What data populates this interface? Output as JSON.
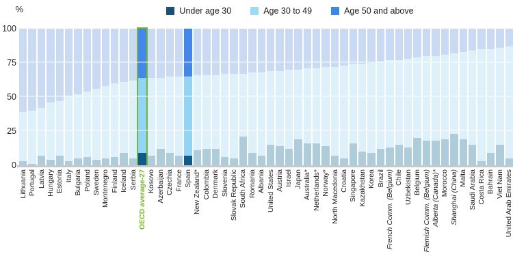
{
  "chart_data": {
    "type": "bar",
    "stacked_percent": true,
    "ylabel": "%",
    "ylim": [
      0,
      100
    ],
    "ytick_labels": [
      "100",
      "75",
      "50",
      "25",
      "0"
    ],
    "grid": "horizontal",
    "legend_position": "top-center",
    "legend": [
      {
        "label": "Under age 30",
        "color": "#1b4f74"
      },
      {
        "label": "Age 30 to 49",
        "color": "#9fd9f7"
      },
      {
        "label": "Age 50 and above",
        "color": "#3f87e5"
      }
    ],
    "colors": {
      "normal": {
        "under30": "#afccdb",
        "age30to49": "#def0f9",
        "age50plus": "#cbdaf3"
      },
      "highlight": {
        "under30": "#0e5a8a",
        "age30to49": "#92d4f6",
        "age50plus": "#4288ec"
      },
      "oecd_outline": "#76b82a",
      "oecd_label_color": "#76b82a"
    },
    "categories": [
      "Lithuania",
      "Portugal",
      "Latvia",
      "Hungary",
      "Estonia",
      "Italy",
      "Bulgaria",
      "Poland",
      "Sweden",
      "Montenegro",
      "Finland",
      "Iceland",
      "Serbia",
      "OECD average-27",
      "Kosovo",
      "Azerbaijan",
      "Czechia",
      "France",
      "Spain",
      "New Zealand*",
      "Colombia",
      "Denmark",
      "Slovenia",
      "Slovak Republic",
      "South Africa",
      "Romania",
      "Albania",
      "United States",
      "Austria",
      "Israel",
      "Japan",
      "Australia*",
      "Netherlands*",
      "Norway*",
      "North Macedonia",
      "Croatia",
      "Singapore",
      "Kazakhstan",
      "Korea",
      "Brazil",
      "French Comm. (Belgium)",
      "Chile",
      "Uzbekistan",
      "Belgium",
      "Flemish Comm. (Belgium)",
      "Alberta (Canada)*",
      "Morocco",
      "Shanghai (China)",
      "Malta",
      "Saudi Arabia",
      "Costa Rica",
      "Bahrain",
      "Viet Nam",
      "United Arab Emirates"
    ],
    "series": [
      {
        "name": "Under age 30",
        "values": [
          3,
          1,
          7,
          4,
          7,
          3,
          5,
          6,
          4,
          5,
          6,
          9,
          5,
          9,
          7,
          12,
          9,
          7,
          7,
          11,
          12,
          12,
          6,
          5,
          21,
          9,
          7,
          15,
          14,
          12,
          19,
          16,
          16,
          14,
          7,
          5,
          16,
          10,
          9,
          12,
          13,
          15,
          13,
          20,
          18,
          18,
          19,
          23,
          19,
          15,
          3,
          9,
          15,
          5
        ]
      },
      {
        "name": "Age 30 to 49",
        "values": [
          36,
          39,
          35,
          42,
          40,
          48,
          47,
          48,
          52,
          53,
          54,
          52,
          57,
          55,
          57,
          52,
          56,
          58,
          58,
          55,
          54,
          54,
          61,
          62,
          46,
          59,
          61,
          54,
          55,
          58,
          51,
          55,
          55,
          58,
          65,
          68,
          58,
          64,
          66,
          64,
          64,
          62,
          65,
          59,
          62,
          62,
          62,
          59,
          64,
          69,
          82,
          76,
          71,
          82
        ]
      },
      {
        "name": "Age 50 and above",
        "values": [
          61,
          60,
          58,
          54,
          53,
          49,
          48,
          46,
          44,
          42,
          40,
          39,
          38,
          36,
          36,
          36,
          35,
          35,
          35,
          34,
          34,
          34,
          33,
          33,
          33,
          32,
          32,
          31,
          31,
          30,
          30,
          29,
          29,
          28,
          28,
          27,
          26,
          26,
          25,
          24,
          23,
          23,
          22,
          21,
          20,
          20,
          19,
          18,
          17,
          16,
          15,
          15,
          14,
          13
        ]
      }
    ],
    "highlighted_bars": [
      "OECD average-27",
      "Spain"
    ],
    "outlined_bar": "OECD average-27",
    "italic_labels": [
      "French Comm. (Belgium)",
      "Flemish Comm. (Belgium)",
      "Alberta (Canada)*",
      "Shanghai (China)"
    ]
  }
}
